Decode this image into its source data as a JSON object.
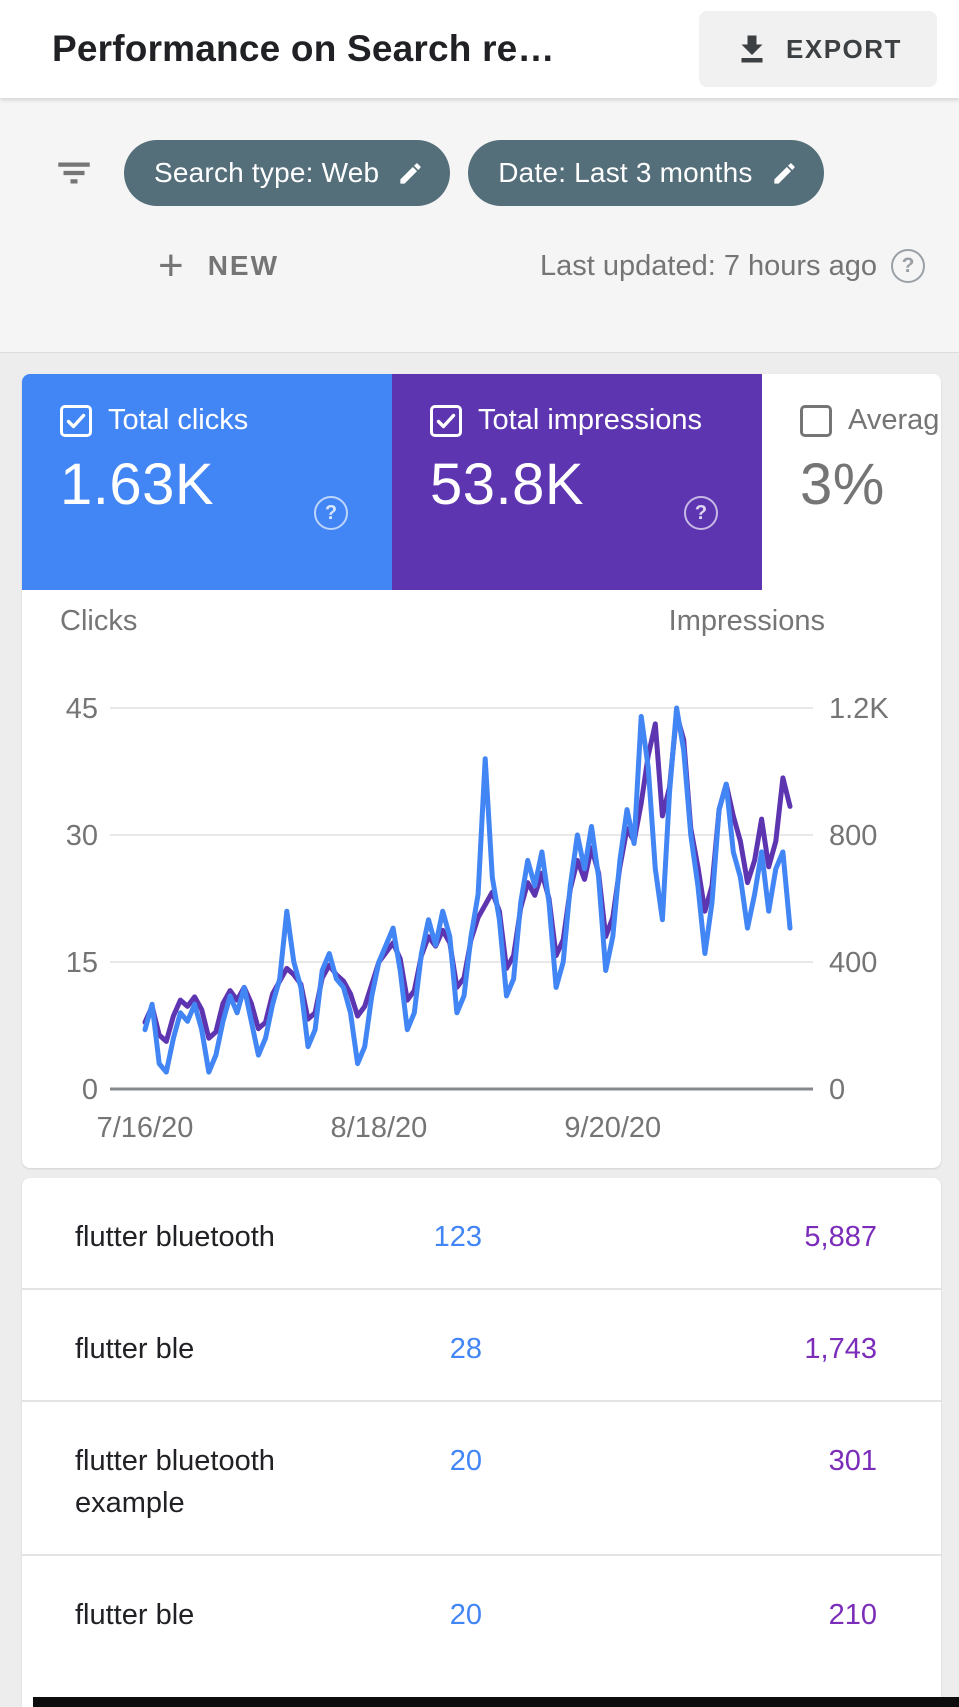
{
  "header": {
    "title": "Performance on Search re…",
    "export_label": "EXPORT"
  },
  "filters": {
    "chips": [
      {
        "label": "Search type: Web"
      },
      {
        "label": "Date: Last 3 months"
      }
    ],
    "new_label": "NEW",
    "last_updated": "Last updated: 7 hours ago",
    "help_glyph": "?"
  },
  "metric_cards": [
    {
      "label": "Total clicks",
      "value": "1.63K",
      "checked": true,
      "color": "#4285f4",
      "help_glyph": "?"
    },
    {
      "label": "Total impressions",
      "value": "53.8K",
      "checked": true,
      "color": "#5e35b1",
      "help_glyph": "?"
    },
    {
      "label": "Averag",
      "value": "3%",
      "checked": false,
      "color": "#ffffff"
    }
  ],
  "chart_data": {
    "type": "line",
    "grid": true,
    "left_axis": {
      "label": "Clicks",
      "ticks": [
        "45",
        "30",
        "15",
        "0"
      ],
      "min": 0,
      "max": 45
    },
    "right_axis": {
      "label": "Impressions",
      "ticks": [
        "1.2K",
        "800",
        "400",
        "0"
      ],
      "min": 0,
      "max": 1200
    },
    "x_ticks": [
      "7/16/20",
      "8/18/20",
      "9/20/20"
    ],
    "x_tick_days": [
      0,
      33,
      66
    ],
    "x_range": [
      "7/16/20",
      "10/15/20"
    ],
    "series": [
      {
        "name": "Impressions",
        "axis": "right",
        "color": "#5e35b1",
        "values": [
          210,
          260,
          170,
          150,
          230,
          280,
          260,
          290,
          250,
          160,
          180,
          270,
          310,
          280,
          320,
          270,
          190,
          210,
          300,
          340,
          380,
          360,
          330,
          220,
          240,
          350,
          390,
          360,
          340,
          300,
          230,
          260,
          330,
          400,
          430,
          460,
          410,
          280,
          310,
          420,
          480,
          450,
          500,
          460,
          320,
          350,
          470,
          540,
          580,
          620,
          560,
          380,
          420,
          570,
          650,
          610,
          680,
          600,
          420,
          470,
          630,
          720,
          660,
          760,
          680,
          480,
          540,
          700,
          820,
          780,
          900,
          1050,
          1150,
          860,
          950,
          1180,
          1100,
          820,
          700,
          560,
          640,
          880,
          960,
          860,
          780,
          650,
          720,
          850,
          700,
          780,
          980,
          890
        ]
      },
      {
        "name": "Clicks",
        "axis": "left",
        "color": "#4285f4",
        "values": [
          7,
          10,
          3,
          2,
          6,
          9,
          8,
          10,
          7,
          2,
          4,
          8,
          11,
          9,
          12,
          8,
          4,
          6,
          10,
          13,
          21,
          15,
          12,
          5,
          7,
          14,
          16,
          13,
          12,
          9,
          3,
          5,
          11,
          15,
          17,
          19,
          14,
          7,
          9,
          16,
          20,
          17,
          21,
          18,
          9,
          11,
          18,
          23,
          39,
          25,
          20,
          11,
          13,
          22,
          27,
          24,
          28,
          22,
          12,
          15,
          24,
          30,
          26,
          31,
          25,
          14,
          18,
          27,
          33,
          29,
          44,
          38,
          26,
          20,
          35,
          45,
          40,
          30,
          24,
          16,
          22,
          33,
          36,
          28,
          25,
          19,
          23,
          28,
          21,
          26,
          28,
          19
        ]
      }
    ]
  },
  "table": {
    "clicks_color": "#4285f4",
    "impressions_color": "#7b2cb9",
    "rows": [
      {
        "query": "flutter bluetooth",
        "clicks": "123",
        "impressions": "5,887"
      },
      {
        "query": "flutter ble",
        "clicks": "28",
        "impressions": "1,743"
      },
      {
        "query": "flutter bluetooth example",
        "clicks": "20",
        "impressions": "301"
      },
      {
        "query": "flutter ble",
        "clicks": "20",
        "impressions": "210"
      }
    ]
  }
}
